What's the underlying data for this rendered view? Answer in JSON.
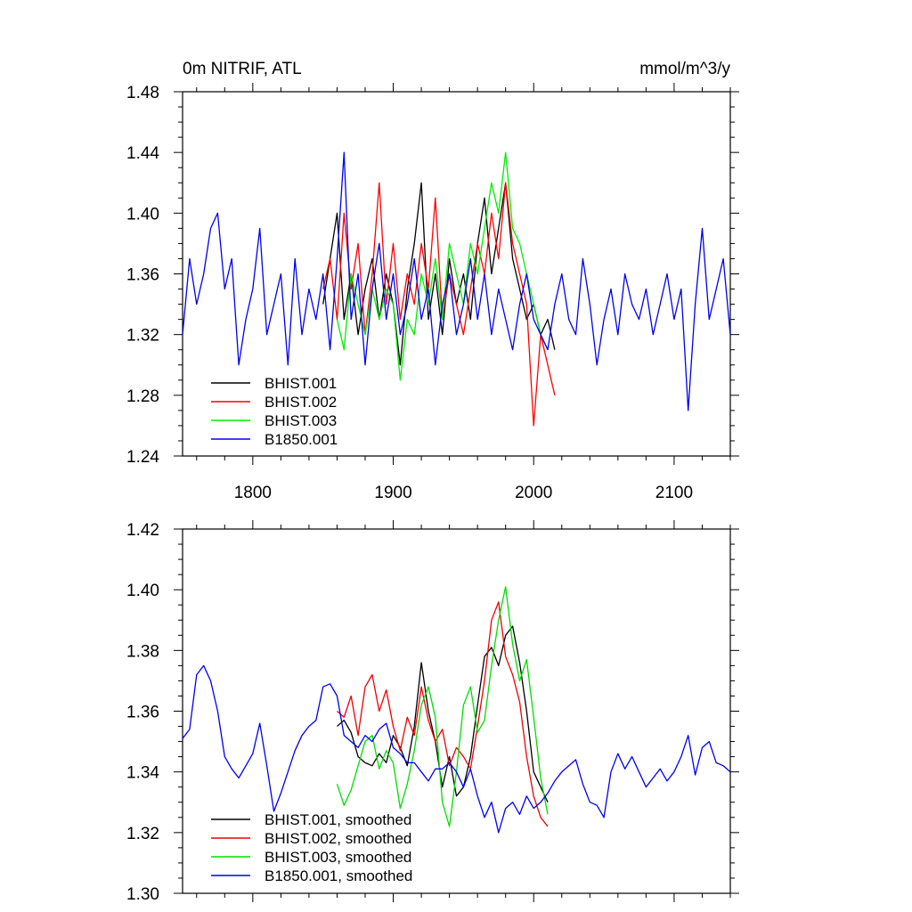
{
  "chart_data": [
    {
      "type": "line",
      "title": "0m NITRIF, ATL",
      "units": "mmol/m^3/y",
      "xlim": [
        1750,
        2140
      ],
      "ylim": [
        1.24,
        1.48
      ],
      "x_ticks": [
        1800,
        1900,
        2000,
        2100
      ],
      "x_tick_labels": [
        "1800",
        "1900",
        "2000",
        "2100"
      ],
      "y_ticks": [
        1.24,
        1.28,
        1.32,
        1.36,
        1.4,
        1.44,
        1.48
      ],
      "y_tick_labels": [
        "1.24",
        "1.28",
        "1.32",
        "1.36",
        "1.40",
        "1.44",
        "1.48"
      ],
      "legend": [
        "BHIST.001",
        "BHIST.002",
        "BHIST.003",
        "B1850.001"
      ],
      "series": [
        {
          "name": "BHIST.001",
          "color": "#000000",
          "x": [
            1850,
            1855,
            1860,
            1865,
            1870,
            1875,
            1880,
            1885,
            1890,
            1895,
            1900,
            1905,
            1910,
            1915,
            1920,
            1925,
            1930,
            1935,
            1940,
            1945,
            1950,
            1955,
            1960,
            1965,
            1970,
            1975,
            1980,
            1985,
            1990,
            1995,
            2000,
            2005,
            2010,
            2015
          ],
          "values": [
            1.34,
            1.37,
            1.4,
            1.33,
            1.36,
            1.32,
            1.35,
            1.37,
            1.33,
            1.36,
            1.34,
            1.3,
            1.35,
            1.38,
            1.42,
            1.33,
            1.36,
            1.32,
            1.37,
            1.34,
            1.36,
            1.33,
            1.38,
            1.41,
            1.36,
            1.39,
            1.42,
            1.37,
            1.35,
            1.33,
            1.34,
            1.32,
            1.33,
            1.31
          ]
        },
        {
          "name": "BHIST.002",
          "color": "#ff0000",
          "x": [
            1850,
            1855,
            1860,
            1865,
            1870,
            1875,
            1880,
            1885,
            1890,
            1895,
            1900,
            1905,
            1910,
            1915,
            1920,
            1925,
            1930,
            1935,
            1940,
            1945,
            1950,
            1955,
            1960,
            1965,
            1970,
            1975,
            1980,
            1985,
            1990,
            1995,
            2000,
            2005,
            2010,
            2015
          ],
          "values": [
            1.35,
            1.37,
            1.33,
            1.4,
            1.35,
            1.38,
            1.32,
            1.36,
            1.42,
            1.34,
            1.38,
            1.33,
            1.36,
            1.34,
            1.38,
            1.35,
            1.41,
            1.33,
            1.36,
            1.34,
            1.32,
            1.35,
            1.38,
            1.36,
            1.4,
            1.37,
            1.42,
            1.38,
            1.36,
            1.34,
            1.26,
            1.32,
            1.3,
            1.28
          ]
        },
        {
          "name": "BHIST.003",
          "color": "#00ee00",
          "x": [
            1860,
            1865,
            1870,
            1875,
            1880,
            1885,
            1890,
            1895,
            1900,
            1905,
            1910,
            1915,
            1920,
            1925,
            1930,
            1935,
            1940,
            1945,
            1950,
            1955,
            1960,
            1965,
            1970,
            1975,
            1980,
            1985,
            1990,
            1995,
            2000,
            2005,
            2010
          ],
          "values": [
            1.33,
            1.31,
            1.36,
            1.34,
            1.32,
            1.35,
            1.33,
            1.35,
            1.34,
            1.29,
            1.33,
            1.32,
            1.36,
            1.34,
            1.37,
            1.33,
            1.38,
            1.36,
            1.34,
            1.38,
            1.36,
            1.39,
            1.42,
            1.4,
            1.44,
            1.39,
            1.38,
            1.36,
            1.34,
            1.32,
            1.31
          ]
        },
        {
          "name": "B1850.001",
          "color": "#0000ee",
          "x": [
            1750,
            1755,
            1760,
            1765,
            1770,
            1775,
            1780,
            1785,
            1790,
            1795,
            1800,
            1805,
            1810,
            1815,
            1820,
            1825,
            1830,
            1835,
            1840,
            1845,
            1850,
            1855,
            1860,
            1865,
            1870,
            1875,
            1880,
            1885,
            1890,
            1895,
            1900,
            1905,
            1910,
            1915,
            1920,
            1925,
            1930,
            1935,
            1940,
            1945,
            1950,
            1955,
            1960,
            1965,
            1970,
            1975,
            1980,
            1985,
            1990,
            1995,
            2000,
            2005,
            2010,
            2015,
            2020,
            2025,
            2030,
            2035,
            2040,
            2045,
            2050,
            2055,
            2060,
            2065,
            2070,
            2075,
            2080,
            2085,
            2090,
            2095,
            2100,
            2105,
            2110,
            2115,
            2120,
            2125,
            2130,
            2135,
            2140
          ],
          "values": [
            1.32,
            1.37,
            1.34,
            1.36,
            1.39,
            1.4,
            1.35,
            1.37,
            1.3,
            1.33,
            1.35,
            1.39,
            1.32,
            1.34,
            1.36,
            1.3,
            1.37,
            1.32,
            1.35,
            1.33,
            1.36,
            1.31,
            1.37,
            1.44,
            1.33,
            1.36,
            1.3,
            1.35,
            1.38,
            1.33,
            1.36,
            1.32,
            1.34,
            1.37,
            1.33,
            1.35,
            1.3,
            1.34,
            1.36,
            1.32,
            1.34,
            1.37,
            1.33,
            1.36,
            1.32,
            1.35,
            1.33,
            1.31,
            1.34,
            1.36,
            1.33,
            1.32,
            1.31,
            1.34,
            1.36,
            1.33,
            1.32,
            1.37,
            1.34,
            1.3,
            1.33,
            1.35,
            1.32,
            1.36,
            1.34,
            1.33,
            1.35,
            1.32,
            1.34,
            1.36,
            1.33,
            1.35,
            1.27,
            1.34,
            1.39,
            1.33,
            1.35,
            1.37,
            1.32
          ]
        }
      ]
    },
    {
      "type": "line",
      "xlim": [
        1750,
        2140
      ],
      "ylim": [
        1.3,
        1.42
      ],
      "x_ticks": [
        1800,
        1900,
        2000,
        2100
      ],
      "y_ticks": [
        1.3,
        1.32,
        1.34,
        1.36,
        1.38,
        1.4,
        1.42
      ],
      "y_tick_labels": [
        "1.30",
        "1.32",
        "1.34",
        "1.36",
        "1.38",
        "1.40",
        "1.42"
      ],
      "legend": [
        "BHIST.001, smoothed",
        "BHIST.002, smoothed",
        "BHIST.003, smoothed",
        "B1850.001, smoothed"
      ],
      "series": [
        {
          "name": "BHIST.001, smoothed",
          "color": "#000000",
          "x": [
            1860,
            1865,
            1870,
            1875,
            1880,
            1885,
            1890,
            1895,
            1900,
            1905,
            1910,
            1915,
            1920,
            1925,
            1930,
            1935,
            1940,
            1945,
            1950,
            1955,
            1960,
            1965,
            1970,
            1975,
            1980,
            1985,
            1990,
            1995,
            2000,
            2005,
            2010
          ],
          "values": [
            1.355,
            1.357,
            1.353,
            1.345,
            1.343,
            1.342,
            1.346,
            1.343,
            1.352,
            1.348,
            1.342,
            1.355,
            1.376,
            1.36,
            1.35,
            1.335,
            1.345,
            1.332,
            1.335,
            1.345,
            1.362,
            1.378,
            1.381,
            1.375,
            1.385,
            1.388,
            1.376,
            1.36,
            1.34,
            1.335,
            1.33
          ]
        },
        {
          "name": "BHIST.002, smoothed",
          "color": "#ee0000",
          "x": [
            1860,
            1865,
            1870,
            1875,
            1880,
            1885,
            1890,
            1895,
            1900,
            1905,
            1910,
            1915,
            1920,
            1925,
            1930,
            1935,
            1940,
            1945,
            1950,
            1955,
            1960,
            1965,
            1970,
            1975,
            1980,
            1985,
            1990,
            1995,
            2000,
            2005,
            2010
          ],
          "values": [
            1.36,
            1.358,
            1.365,
            1.352,
            1.368,
            1.372,
            1.36,
            1.367,
            1.355,
            1.347,
            1.358,
            1.352,
            1.368,
            1.357,
            1.35,
            1.354,
            1.342,
            1.348,
            1.345,
            1.341,
            1.355,
            1.37,
            1.39,
            1.396,
            1.378,
            1.372,
            1.363,
            1.345,
            1.332,
            1.325,
            1.322
          ]
        },
        {
          "name": "BHIST.003, smoothed",
          "color": "#00dd00",
          "x": [
            1860,
            1865,
            1870,
            1875,
            1880,
            1885,
            1890,
            1895,
            1900,
            1905,
            1910,
            1915,
            1920,
            1925,
            1930,
            1935,
            1940,
            1945,
            1950,
            1955,
            1960,
            1965,
            1970,
            1975,
            1980,
            1985,
            1990,
            1995,
            2000,
            2005,
            2010
          ],
          "values": [
            1.336,
            1.329,
            1.334,
            1.342,
            1.35,
            1.352,
            1.341,
            1.347,
            1.343,
            1.328,
            1.336,
            1.347,
            1.362,
            1.368,
            1.358,
            1.33,
            1.322,
            1.34,
            1.362,
            1.368,
            1.353,
            1.357,
            1.375,
            1.39,
            1.401,
            1.382,
            1.37,
            1.377,
            1.358,
            1.338,
            1.326
          ]
        },
        {
          "name": "B1850.001, smoothed",
          "color": "#0000ee",
          "x": [
            1750,
            1755,
            1760,
            1765,
            1770,
            1775,
            1780,
            1785,
            1790,
            1795,
            1800,
            1805,
            1810,
            1815,
            1820,
            1825,
            1830,
            1835,
            1840,
            1845,
            1850,
            1855,
            1860,
            1865,
            1870,
            1875,
            1880,
            1885,
            1890,
            1895,
            1900,
            1905,
            1910,
            1915,
            1920,
            1925,
            1930,
            1935,
            1940,
            1945,
            1950,
            1955,
            1960,
            1965,
            1970,
            1975,
            1980,
            1985,
            1990,
            1995,
            2000,
            2005,
            2010,
            2015,
            2020,
            2025,
            2030,
            2035,
            2040,
            2045,
            2050,
            2055,
            2060,
            2065,
            2070,
            2075,
            2080,
            2085,
            2090,
            2095,
            2100,
            2105,
            2110,
            2115,
            2120,
            2125,
            2130,
            2135,
            2140
          ],
          "values": [
            1.351,
            1.354,
            1.372,
            1.375,
            1.37,
            1.36,
            1.345,
            1.341,
            1.338,
            1.342,
            1.346,
            1.356,
            1.342,
            1.327,
            1.333,
            1.34,
            1.347,
            1.352,
            1.355,
            1.357,
            1.368,
            1.369,
            1.365,
            1.352,
            1.35,
            1.348,
            1.352,
            1.35,
            1.354,
            1.356,
            1.348,
            1.346,
            1.343,
            1.343,
            1.34,
            1.337,
            1.341,
            1.341,
            1.343,
            1.34,
            1.335,
            1.341,
            1.332,
            1.325,
            1.33,
            1.32,
            1.328,
            1.33,
            1.326,
            1.332,
            1.328,
            1.33,
            1.333,
            1.337,
            1.34,
            1.342,
            1.344,
            1.336,
            1.33,
            1.329,
            1.325,
            1.34,
            1.346,
            1.341,
            1.345,
            1.34,
            1.335,
            1.338,
            1.341,
            1.337,
            1.34,
            1.345,
            1.352,
            1.339,
            1.348,
            1.35,
            1.343,
            1.342,
            1.34
          ]
        }
      ]
    }
  ]
}
